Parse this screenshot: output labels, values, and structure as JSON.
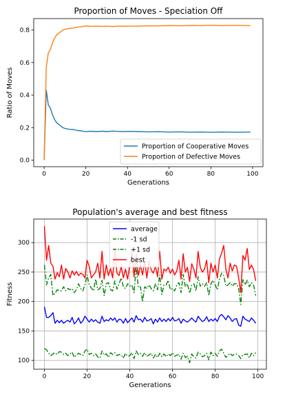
{
  "chart_data": [
    {
      "type": "line",
      "title": "Proportion of Moves - Speciation Off",
      "xlabel": "Generations",
      "ylabel": "Ratio of Moves",
      "xlim": [
        -5,
        105
      ],
      "ylim": [
        -0.04,
        0.87
      ],
      "xticks": [
        0,
        20,
        40,
        60,
        80,
        100
      ],
      "yticks": [
        0.0,
        0.2,
        0.4,
        0.6,
        0.8
      ],
      "ytick_labels": [
        "0.0",
        "0.2",
        "0.4",
        "0.6",
        "0.8"
      ],
      "grid": false,
      "legend_position": "lower-right",
      "series": [
        {
          "name": "Proportion of Cooperative Moves",
          "color": "#1f77b4",
          "style": "solid",
          "x": [
            0,
            1,
            2,
            3,
            4,
            5,
            6,
            7,
            8,
            9,
            10,
            12,
            14,
            16,
            18,
            20,
            22,
            25,
            28,
            30,
            33,
            35,
            38,
            40,
            45,
            50,
            55,
            60,
            65,
            70,
            75,
            80,
            85,
            90,
            95,
            99
          ],
          "y": [
            0.0,
            0.43,
            0.34,
            0.32,
            0.28,
            0.25,
            0.23,
            0.22,
            0.21,
            0.2,
            0.195,
            0.19,
            0.188,
            0.182,
            0.18,
            0.175,
            0.178,
            0.176,
            0.178,
            0.176,
            0.179,
            0.177,
            0.176,
            0.177,
            0.176,
            0.174,
            0.175,
            0.173,
            0.174,
            0.172,
            0.173,
            0.171,
            0.173,
            0.172,
            0.172,
            0.173
          ]
        },
        {
          "name": "Proportion of Defective Moves",
          "color": "#ff7f0e",
          "style": "solid",
          "x": [
            0,
            1,
            2,
            3,
            4,
            5,
            6,
            7,
            8,
            9,
            10,
            12,
            14,
            16,
            18,
            20,
            22,
            25,
            28,
            30,
            33,
            35,
            38,
            40,
            45,
            50,
            55,
            60,
            65,
            70,
            75,
            80,
            85,
            90,
            95,
            99
          ],
          "y": [
            0.0,
            0.57,
            0.66,
            0.68,
            0.72,
            0.75,
            0.77,
            0.78,
            0.79,
            0.8,
            0.805,
            0.81,
            0.812,
            0.818,
            0.82,
            0.825,
            0.822,
            0.824,
            0.822,
            0.824,
            0.821,
            0.823,
            0.824,
            0.823,
            0.824,
            0.826,
            0.825,
            0.827,
            0.826,
            0.828,
            0.827,
            0.829,
            0.827,
            0.828,
            0.828,
            0.827
          ]
        }
      ]
    },
    {
      "type": "line",
      "title": "Population's average and best fitness",
      "xlabel": "Generations",
      "ylabel": "Fitness",
      "xlim": [
        -5,
        104
      ],
      "ylim": [
        85,
        340
      ],
      "xticks": [
        0,
        20,
        40,
        60,
        80,
        100
      ],
      "yticks": [
        100,
        150,
        200,
        250,
        300
      ],
      "ytick_labels": [
        "100",
        "150",
        "200",
        "250",
        "300"
      ],
      "grid": true,
      "legend_position": "upper-center",
      "x": [
        0,
        1,
        2,
        3,
        4,
        5,
        6,
        7,
        8,
        9,
        10,
        11,
        12,
        13,
        14,
        15,
        16,
        17,
        18,
        19,
        20,
        21,
        22,
        23,
        24,
        25,
        26,
        27,
        28,
        29,
        30,
        31,
        32,
        33,
        34,
        35,
        36,
        37,
        38,
        39,
        40,
        41,
        42,
        43,
        44,
        45,
        46,
        47,
        48,
        49,
        50,
        51,
        52,
        53,
        54,
        55,
        56,
        57,
        58,
        59,
        60,
        61,
        62,
        63,
        64,
        65,
        66,
        67,
        68,
        69,
        70,
        71,
        72,
        73,
        74,
        75,
        76,
        77,
        78,
        79,
        80,
        81,
        82,
        83,
        84,
        85,
        86,
        87,
        88,
        89,
        90,
        91,
        92,
        93,
        94,
        95,
        96,
        97,
        98,
        99
      ],
      "series": [
        {
          "name": "average",
          "color": "#0000ff",
          "style": "solid",
          "values": [
            191,
            173,
            173,
            176,
            181,
            163,
            168,
            164,
            168,
            163,
            166,
            168,
            165,
            173,
            162,
            166,
            172,
            163,
            167,
            175,
            170,
            165,
            170,
            166,
            169,
            165,
            163,
            175,
            166,
            169,
            167,
            172,
            168,
            172,
            165,
            170,
            169,
            163,
            171,
            164,
            168,
            172,
            165,
            176,
            169,
            170,
            165,
            173,
            167,
            168,
            171,
            162,
            170,
            165,
            172,
            166,
            170,
            166,
            171,
            167,
            173,
            167,
            168,
            171,
            163,
            170,
            167,
            165,
            168,
            172,
            168,
            165,
            175,
            170,
            166,
            168,
            174,
            166,
            170,
            167,
            171,
            166,
            175,
            178,
            174,
            169,
            176,
            172,
            166,
            170,
            171,
            160,
            158,
            175,
            170,
            168,
            166,
            172,
            168,
            163
          ]
        },
        {
          "name": "-1 sd",
          "color": "#008000",
          "style": "dashdot",
          "values": [
            120,
            118,
            112,
            108,
            111,
            113,
            110,
            115,
            114,
            110,
            112,
            108,
            111,
            114,
            105,
            109,
            112,
            110,
            108,
            116,
            119,
            110,
            112,
            108,
            111,
            106,
            104,
            116,
            109,
            111,
            105,
            113,
            110,
            113,
            108,
            110,
            109,
            104,
            112,
            107,
            108,
            113,
            103,
            116,
            110,
            112,
            107,
            113,
            107,
            109,
            112,
            104,
            110,
            105,
            112,
            106,
            111,
            106,
            111,
            108,
            113,
            107,
            109,
            110,
            102,
            112,
            105,
            107,
            96,
            111,
            106,
            104,
            114,
            111,
            106,
            108,
            112,
            101,
            114,
            108,
            112,
            107,
            116,
            119,
            112,
            105,
            108,
            112,
            108,
            110,
            111,
            108,
            103,
            110,
            110,
            111,
            104,
            112,
            108,
            113
          ]
        },
        {
          "name": "+1 sd",
          "color": "#008000",
          "style": "dashdot",
          "values": [
            262,
            228,
            240,
            246,
            210,
            214,
            220,
            218,
            218,
            225,
            218,
            222,
            220,
            222,
            215,
            220,
            230,
            222,
            218,
            228,
            245,
            228,
            223,
            218,
            238,
            220,
            222,
            236,
            210,
            230,
            232,
            220,
            218,
            235,
            221,
            230,
            240,
            225,
            222,
            230,
            226,
            228,
            215,
            260,
            224,
            225,
            200,
            225,
            222,
            228,
            222,
            218,
            230,
            220,
            245,
            212,
            228,
            228,
            236,
            220,
            222,
            218,
            228,
            232,
            215,
            246,
            225,
            230,
            214,
            228,
            230,
            218,
            242,
            226,
            230,
            226,
            232,
            210,
            230,
            236,
            228,
            220,
            238,
            248,
            244,
            226,
            228,
            232,
            226,
            230,
            230,
            222,
            195,
            237,
            228,
            236,
            225,
            232,
            228,
            210
          ]
        },
        {
          "name": "best",
          "color": "#ff0000",
          "style": "solid",
          "values": [
            328,
            270,
            295,
            265,
            260,
            238,
            249,
            242,
            262,
            238,
            256,
            250,
            240,
            252,
            245,
            251,
            244,
            248,
            246,
            240,
            270,
            260,
            240,
            245,
            250,
            265,
            240,
            285,
            238,
            262,
            244,
            256,
            240,
            290,
            248,
            244,
            260,
            240,
            255,
            238,
            262,
            285,
            242,
            280,
            244,
            262,
            245,
            270,
            240,
            268,
            254,
            248,
            260,
            242,
            285,
            238,
            255,
            252,
            258,
            248,
            255,
            245,
            252,
            270,
            238,
            281,
            250,
            258,
            234,
            264,
            255,
            240,
            285,
            258,
            250,
            255,
            270,
            232,
            265,
            250,
            262,
            240,
            272,
            282,
            295,
            255,
            240,
            265,
            252,
            262,
            260,
            240,
            215,
            278,
            270,
            290,
            254,
            262,
            254,
            235
          ]
        }
      ]
    }
  ]
}
